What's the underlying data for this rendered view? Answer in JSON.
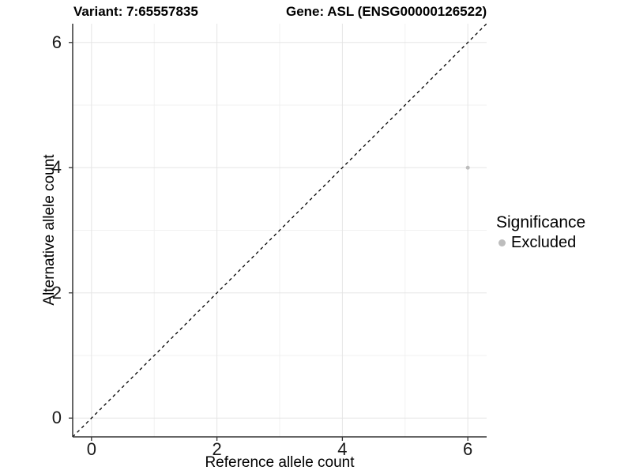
{
  "titles": {
    "left": "Variant: 7:65557835",
    "right": "Gene: ASL (ENSG00000126522)"
  },
  "legend": {
    "title": "Significance",
    "items": [
      {
        "label": "Excluded",
        "color": "#bdbdbd"
      }
    ]
  },
  "chart_data": {
    "type": "scatter",
    "title": "Variant: 7:65557835   Gene: ASL (ENSG00000126522)",
    "xlabel": "Reference allele count",
    "ylabel": "Alternative allele count",
    "xlim": [
      -0.3,
      6.3
    ],
    "ylim": [
      -0.3,
      6.3
    ],
    "x_ticks": [
      0,
      2,
      4,
      6
    ],
    "y_ticks": [
      0,
      2,
      4,
      6
    ],
    "minor_gridlines": [
      1,
      3,
      5
    ],
    "grid": true,
    "legend_position": "right",
    "legend_title": "Significance",
    "reference_line": {
      "kind": "identity",
      "slope": 1,
      "intercept": 0,
      "style": "dashed",
      "color": "#000000"
    },
    "series": [
      {
        "name": "Excluded",
        "color": "#bdbdbd",
        "points": [
          {
            "x": 6,
            "y": 4
          }
        ]
      }
    ]
  },
  "style": {
    "grid_major_color": "#e5e5e5",
    "grid_minor_color": "#f1f1f1",
    "axis_line_color": "#333333",
    "tick_color": "#333333",
    "point_radius": 2.5
  }
}
